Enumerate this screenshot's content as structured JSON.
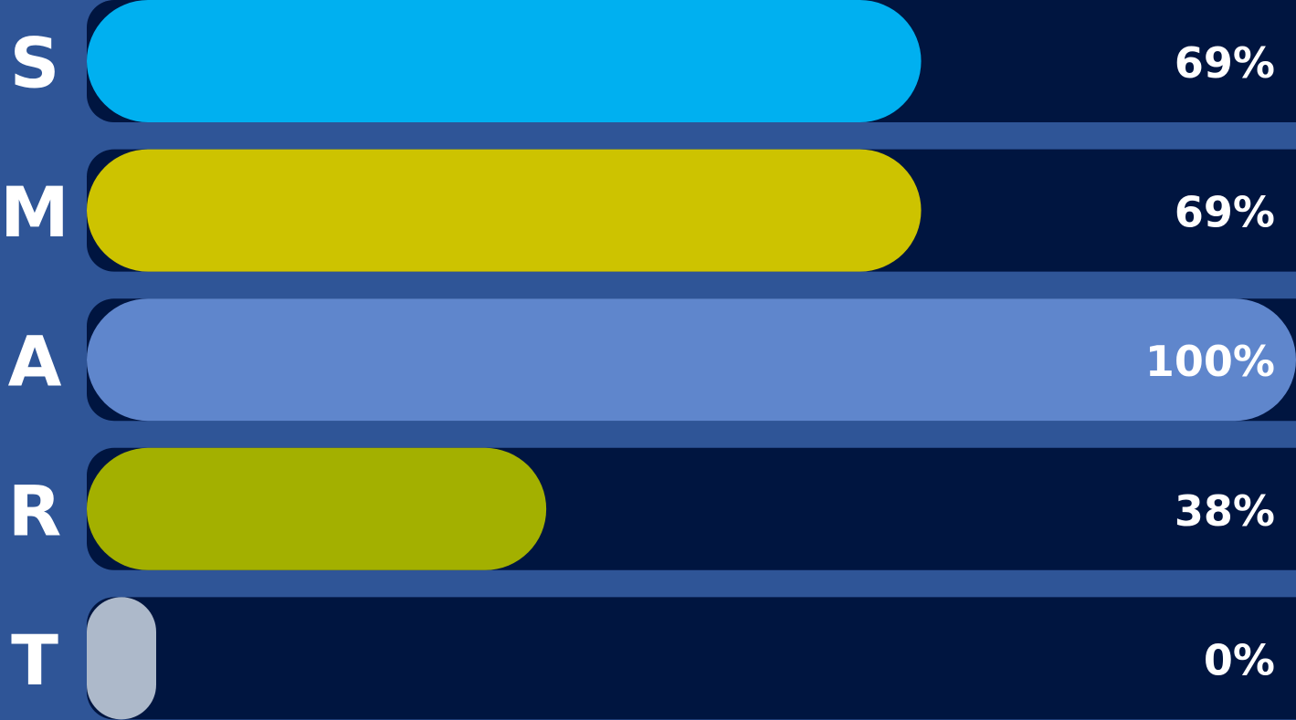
{
  "chart_data": {
    "type": "bar",
    "orientation": "horizontal",
    "categories": [
      "S",
      "M",
      "A",
      "R",
      "T"
    ],
    "values": [
      69,
      69,
      100,
      38,
      0
    ],
    "value_labels": [
      "69%",
      "69%",
      "100%",
      "38%",
      "0%"
    ],
    "colors": [
      "#00b0f0",
      "#cdc300",
      "#5f86cc",
      "#a3b000",
      "#adb9ca"
    ],
    "xlim": [
      0,
      100
    ]
  }
}
